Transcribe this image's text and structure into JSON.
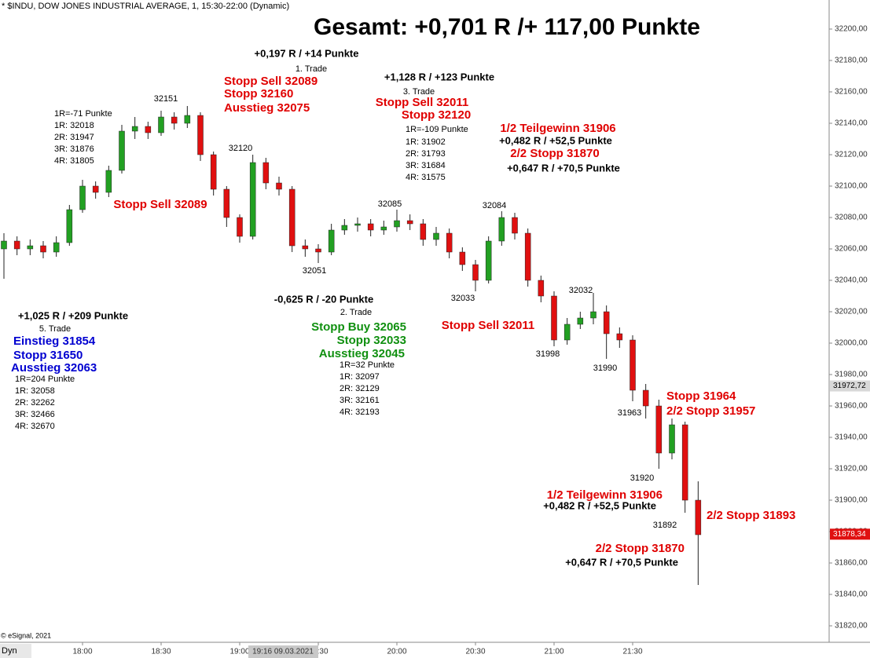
{
  "header": "* $INDU, DOW JONES INDUSTRIAL AVERAGE, 1, 15:30-22:00 (Dynamic)",
  "footer": "© eSignal, 2021",
  "mode_label": "Dyn",
  "cursor_label": "19:16 09.03.2021",
  "chart_data": {
    "type": "candlestick",
    "up_color": "#22a022",
    "down_color": "#e01010",
    "x": [
      1050,
      1055,
      1060,
      1065,
      1070,
      1075,
      1080,
      1085,
      1090,
      1095,
      1100,
      1105,
      1110,
      1115,
      1120,
      1125,
      1130,
      1135,
      1140,
      1145,
      1150,
      1155,
      1160,
      1165,
      1170,
      1175,
      1180,
      1185,
      1190,
      1195,
      1200,
      1205,
      1210,
      1215,
      1220,
      1225,
      1230,
      1235,
      1240,
      1245,
      1250,
      1255,
      1260,
      1265,
      1270,
      1275,
      1280,
      1285,
      1290,
      1295,
      1300,
      1305,
      1310,
      1315
    ],
    "open": [
      32060,
      32065,
      32060,
      32062,
      32058,
      32064,
      32085,
      32100,
      32096,
      32110,
      32135,
      32138,
      32134,
      32144,
      32140,
      32145,
      32120,
      32098,
      32080,
      32068,
      32115,
      32102,
      32098,
      32062,
      32060,
      32058,
      32072,
      32075,
      32076,
      32072,
      32074,
      32078,
      32076,
      32066,
      32070,
      32058,
      32050,
      32040,
      32065,
      32080,
      32070,
      32040,
      32030,
      32002,
      32012,
      32016,
      32020,
      32006,
      32002,
      31970,
      31960,
      31930,
      31948,
      31900
    ],
    "high": [
      32070,
      32068,
      32066,
      32065,
      32068,
      32088,
      32104,
      32103,
      32113,
      32139,
      32144,
      32141,
      32148,
      32147,
      32151,
      32147,
      32122,
      32100,
      32082,
      32120,
      32118,
      32106,
      32100,
      32066,
      32063,
      32076,
      32079,
      32080,
      32079,
      32078,
      32085,
      32082,
      32079,
      32074,
      32073,
      32061,
      32053,
      32068,
      32084,
      32083,
      32073,
      32043,
      32033,
      32016,
      32020,
      32032,
      32024,
      32010,
      32005,
      31974,
      31964,
      31952,
      31950,
      31912
    ],
    "low": [
      32041,
      32056,
      32056,
      32054,
      32055,
      32062,
      32083,
      32092,
      32093,
      32108,
      32130,
      32130,
      32132,
      32136,
      32137,
      32116,
      32094,
      32074,
      32064,
      32066,
      32098,
      32094,
      32058,
      32055,
      32051,
      32056,
      32069,
      32071,
      32068,
      32069,
      32071,
      32072,
      32062,
      32062,
      32054,
      32046,
      32033,
      32038,
      32062,
      32066,
      32036,
      32026,
      31998,
      31999,
      32009,
      32012,
      31990,
      31997,
      31963,
      31952,
      31920,
      31926,
      31892,
      31846
    ],
    "close": [
      32065,
      32060,
      32062,
      32058,
      32064,
      32085,
      32100,
      32096,
      32110,
      32135,
      32138,
      32134,
      32144,
      32140,
      32145,
      32120,
      32098,
      32080,
      32068,
      32115,
      32102,
      32098,
      32062,
      32060,
      32058,
      32072,
      32075,
      32076,
      32072,
      32074,
      32078,
      32076,
      32066,
      32070,
      32058,
      32050,
      32040,
      32065,
      32080,
      32070,
      32040,
      32030,
      32002,
      32012,
      32016,
      32020,
      32006,
      32002,
      31970,
      31960,
      31930,
      31948,
      31900,
      31878
    ],
    "xlim": [
      1048.5,
      1365
    ],
    "xticks": [
      {
        "value": 1080,
        "label": "18:00"
      },
      {
        "value": 1110,
        "label": "18:30"
      },
      {
        "value": 1140,
        "label": "19:00"
      },
      {
        "value": 1170,
        "label": "19:30"
      },
      {
        "value": 1200,
        "label": "20:00"
      },
      {
        "value": 1230,
        "label": "20:30"
      },
      {
        "value": 1260,
        "label": "21:00"
      },
      {
        "value": 1290,
        "label": "21:30"
      }
    ],
    "ylim": [
      31809.5,
      32218.5
    ],
    "yticks": [
      {
        "value": 31820,
        "label": "31820,00"
      },
      {
        "value": 31840,
        "label": "31840,00"
      },
      {
        "value": 31860,
        "label": "31860,00"
      },
      {
        "value": 31880,
        "label": "31880,00"
      },
      {
        "value": 31900,
        "label": "31900,00"
      },
      {
        "value": 31920,
        "label": "31920,00"
      },
      {
        "value": 31940,
        "label": "31940,00"
      },
      {
        "value": 31960,
        "label": "31960,00"
      },
      {
        "value": 31980,
        "label": "31980,00"
      },
      {
        "value": 32000,
        "label": "32000,00"
      },
      {
        "value": 32020,
        "label": "32020,00"
      },
      {
        "value": 32040,
        "label": "32040,00"
      },
      {
        "value": 32060,
        "label": "32060,00"
      },
      {
        "value": 32080,
        "label": "32080,00"
      },
      {
        "value": 32100,
        "label": "32100,00"
      },
      {
        "value": 32120,
        "label": "32120,00"
      },
      {
        "value": 32140,
        "label": "32140,00"
      },
      {
        "value": 32160,
        "label": "32160,00"
      },
      {
        "value": 32180,
        "label": "32180,00"
      },
      {
        "value": 32200,
        "label": "32200,00"
      }
    ],
    "last_price": {
      "value": 31878.34,
      "label": "31878,34"
    },
    "marker_price": {
      "value": 31972.72,
      "label": "31972,72"
    },
    "annotations": [
      "Gesamt: +0,701 R /+ 117,00 Punkte",
      "+0,197 R / +14 Punkte",
      "1. Trade",
      "Stopp Sell 32089",
      "Stopp 32160",
      "Ausstieg 32075",
      "+1,128 R / +123 Punkte",
      "3. Trade",
      "Stopp Sell 32011",
      "Stopp 32120",
      "1R=-109 Punkte",
      "1R: 31902",
      "2R: 31793",
      "3R: 31684",
      "4R: 31575",
      "1/2 Teilgewinn 31906",
      "+0,482 R / +52,5 Punkte",
      "2/2 Stopp 31870",
      "+0,647 R / +70,5 Punkte",
      "1R=-71 Punkte",
      "1R: 32018",
      "2R: 31947",
      "3R: 31876",
      "4R: 31805",
      "Stopp Sell 32089",
      "+1,025 R / +209 Punkte",
      "5. Trade",
      "Einstieg 31854",
      "Stopp 31650",
      "Ausstieg 32063",
      "1R=204 Punkte",
      "1R: 32058",
      "2R: 32262",
      "3R: 32466",
      "4R: 32670",
      "-0,625 R / -20 Punkte",
      "2. Trade",
      "Stopp Buy 32065",
      "Stopp 32033",
      "Ausstieg 32045",
      "1R=32 Punkte",
      "1R: 32097",
      "2R: 32129",
      "3R: 32161",
      "4R: 32193",
      "Stopp Sell 32011",
      "Stopp 31964",
      "2/2 Stopp 31957",
      "1/2 Teilgewinn 31906",
      "+0,482 R / +52,5 Punkte",
      "2/2 Stopp 31893",
      "2/2 Stopp 31870",
      "+0,647 R / +70,5 Punkte",
      "32151",
      "32120",
      "32085",
      "32084",
      "32051",
      "32033",
      "32032",
      "31998",
      "31990",
      "31963",
      "31920",
      "31892"
    ]
  }
}
